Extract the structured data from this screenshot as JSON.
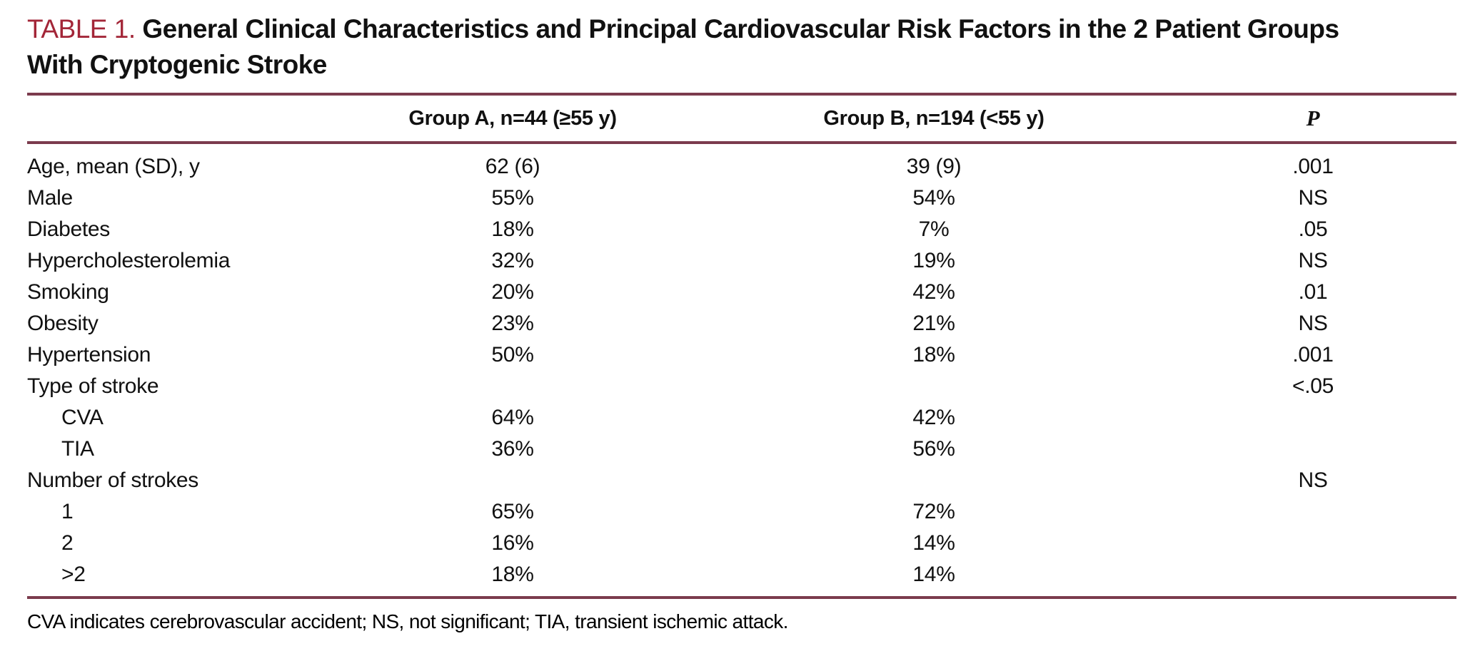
{
  "colors": {
    "accent": "#A32638",
    "rule": "#7B3B4D"
  },
  "table": {
    "label": "TABLE 1.",
    "title": "General Clinical Characteristics and Principal Cardiovascular Risk Factors in the 2 Patient Groups With Cryptogenic Stroke",
    "title_line1": "General Clinical Characteristics and Principal Cardiovascular Risk Factors in the 2 Patient Groups",
    "title_line2": "With Cryptogenic Stroke",
    "columns": [
      "",
      "Group A, n=44 (≥55 y)",
      "Group B, n=194 (<55 y)",
      "P"
    ],
    "rows": [
      {
        "label": "Age, mean (SD), y",
        "indent": false,
        "group_a": "62 (6)",
        "group_b": "39 (9)",
        "p": ".001"
      },
      {
        "label": "Male",
        "indent": false,
        "group_a": "55%",
        "group_b": "54%",
        "p": "NS"
      },
      {
        "label": "Diabetes",
        "indent": false,
        "group_a": "18%",
        "group_b": "7%",
        "p": ".05"
      },
      {
        "label": "Hypercholesterolemia",
        "indent": false,
        "group_a": "32%",
        "group_b": "19%",
        "p": "NS"
      },
      {
        "label": "Smoking",
        "indent": false,
        "group_a": "20%",
        "group_b": "42%",
        "p": ".01"
      },
      {
        "label": "Obesity",
        "indent": false,
        "group_a": "23%",
        "group_b": "21%",
        "p": "NS"
      },
      {
        "label": "Hypertension",
        "indent": false,
        "group_a": "50%",
        "group_b": "18%",
        "p": ".001"
      },
      {
        "label": "Type of stroke",
        "indent": false,
        "group_a": "",
        "group_b": "",
        "p": "<.05"
      },
      {
        "label": "CVA",
        "indent": true,
        "group_a": "64%",
        "group_b": "42%",
        "p": ""
      },
      {
        "label": "TIA",
        "indent": true,
        "group_a": "36%",
        "group_b": "56%",
        "p": ""
      },
      {
        "label": "Number of strokes",
        "indent": false,
        "group_a": "",
        "group_b": "",
        "p": "NS"
      },
      {
        "label": "1",
        "indent": true,
        "group_a": "65%",
        "group_b": "72%",
        "p": ""
      },
      {
        "label": "2",
        "indent": true,
        "group_a": "16%",
        "group_b": "14%",
        "p": ""
      },
      {
        "label": ">2",
        "indent": true,
        "group_a": "18%",
        "group_b": "14%",
        "p": ""
      }
    ],
    "footnote": "CVA indicates cerebrovascular accident; NS, not significant; TIA, transient ischemic attack."
  }
}
